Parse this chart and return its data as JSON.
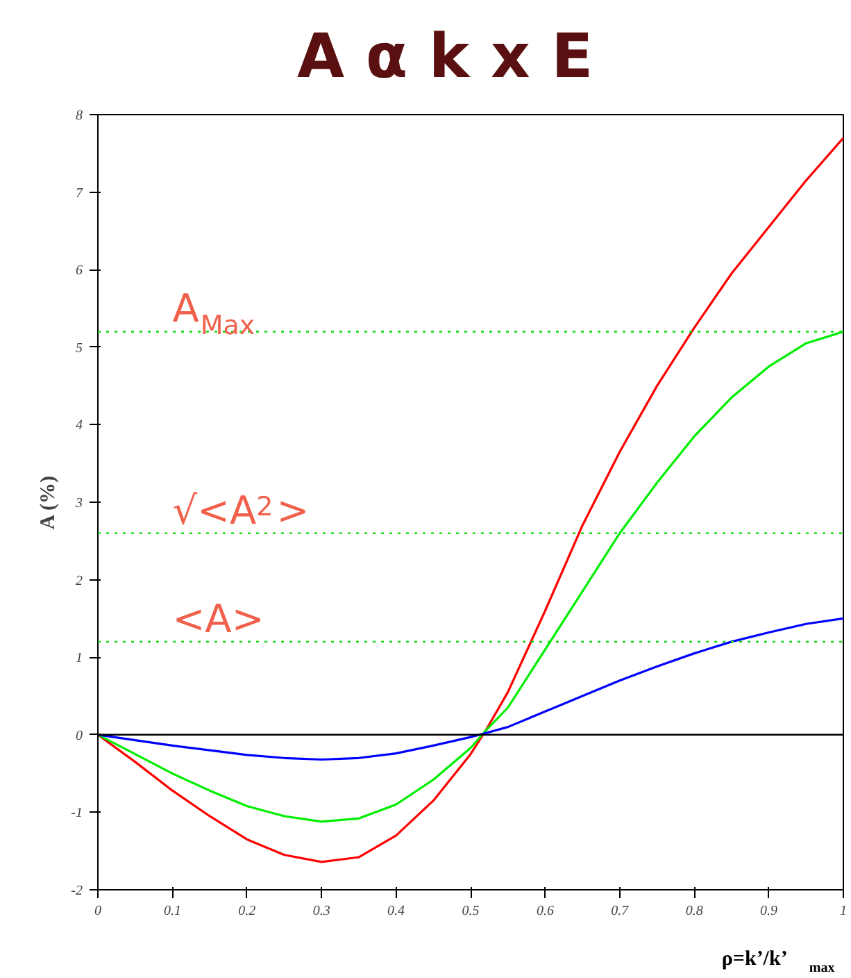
{
  "chart_data": {
    "type": "line",
    "title": "A α k x E",
    "xlabel": "ρ=k’/k’$_{max}$",
    "ylabel": "A (%)",
    "x": [
      0,
      0.05,
      0.1,
      0.15,
      0.2,
      0.25,
      0.3,
      0.35,
      0.4,
      0.45,
      0.5,
      0.52,
      0.55,
      0.6,
      0.65,
      0.7,
      0.75,
      0.8,
      0.85,
      0.9,
      0.95,
      1.0
    ],
    "series": [
      {
        "color": "#ff0000",
        "values": [
          0,
          -0.35,
          -0.72,
          -1.05,
          -1.35,
          -1.55,
          -1.64,
          -1.58,
          -1.3,
          -0.85,
          -0.25,
          0.05,
          0.55,
          1.6,
          2.7,
          3.65,
          4.5,
          5.25,
          5.95,
          6.55,
          7.15,
          7.7
        ]
      },
      {
        "color": "#00ee00",
        "values": [
          0,
          -0.25,
          -0.5,
          -0.72,
          -0.92,
          -1.05,
          -1.12,
          -1.08,
          -0.9,
          -0.58,
          -0.17,
          0.05,
          0.35,
          1.1,
          1.85,
          2.6,
          3.25,
          3.85,
          4.35,
          4.75,
          5.05,
          5.2
        ]
      },
      {
        "color": "#0000ff",
        "values": [
          0,
          -0.07,
          -0.14,
          -0.2,
          -0.26,
          -0.3,
          -0.32,
          -0.3,
          -0.24,
          -0.14,
          -0.03,
          0.02,
          0.1,
          0.3,
          0.5,
          0.7,
          0.88,
          1.05,
          1.2,
          1.32,
          1.43,
          1.5
        ]
      }
    ],
    "ref_lines": [
      {
        "axis": "y",
        "value": 0,
        "color": "#000000",
        "line_style": "solid"
      },
      {
        "axis": "y",
        "value": 5.2,
        "label": "A$_{Max}$",
        "color": "#00dd00",
        "line_style": "dotted"
      },
      {
        "axis": "y",
        "value": 2.6,
        "label": "√<A$^{2}$>",
        "color": "#00dd00",
        "line_style": "dotted"
      },
      {
        "axis": "y",
        "value": 1.2,
        "label": "<A>",
        "color": "#00dd00",
        "line_style": "dotted"
      }
    ],
    "xlim": [
      0,
      1
    ],
    "ylim": [
      -2,
      8
    ],
    "xticks": [
      0,
      0.1,
      0.2,
      0.3,
      0.4,
      0.5,
      0.6,
      0.7,
      0.8,
      0.9,
      1
    ],
    "yticks": [
      -2,
      -1,
      0,
      1,
      2,
      3,
      4,
      5,
      6,
      7,
      8
    ],
    "grid": false,
    "marker": "none",
    "line_style": "solid"
  }
}
